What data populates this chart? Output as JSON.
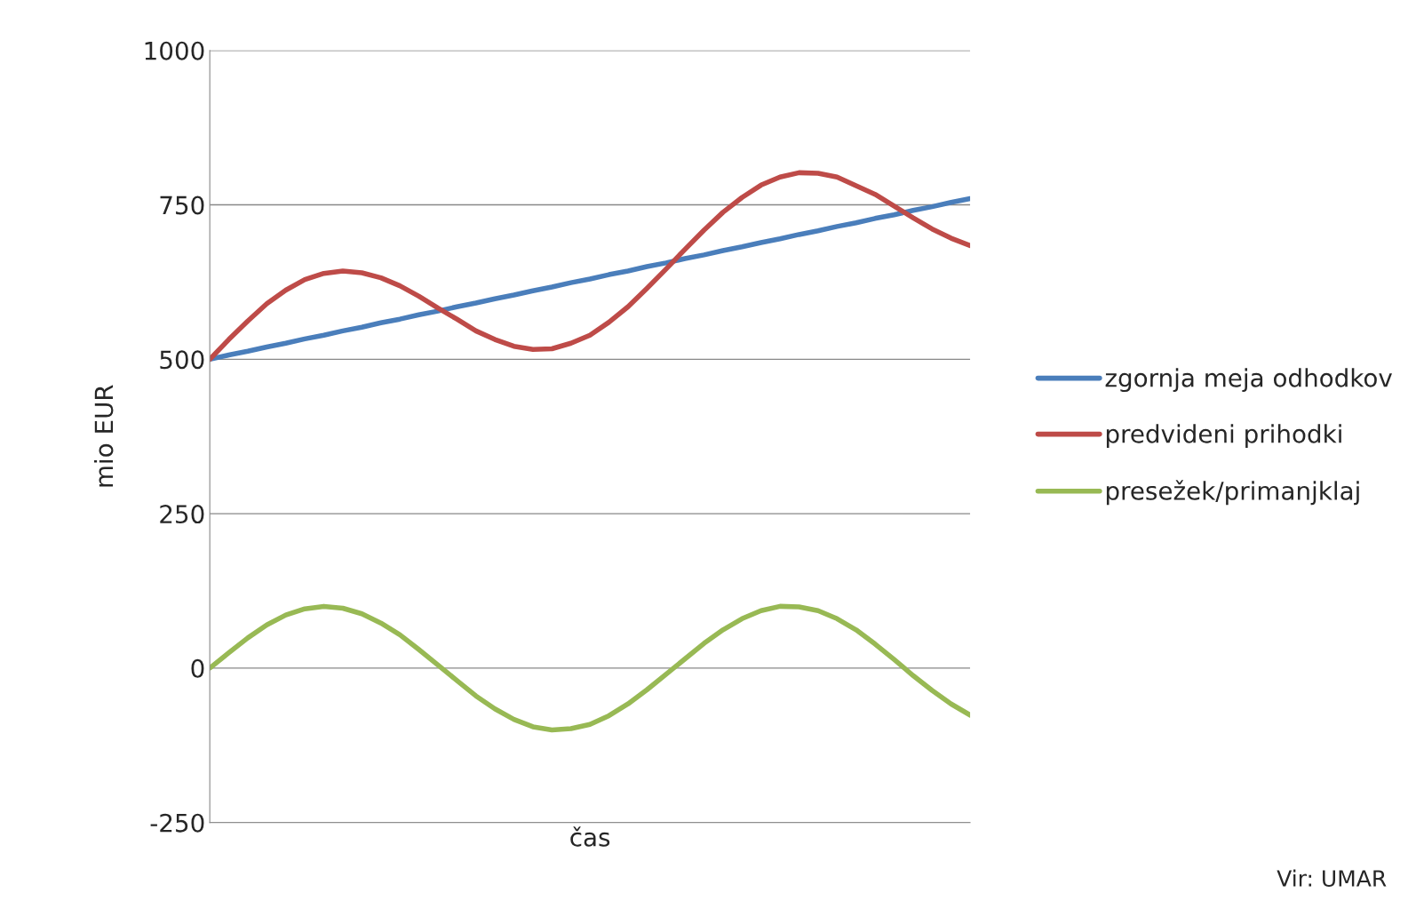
{
  "chart_data": {
    "type": "line",
    "xlabel": "čas",
    "ylabel": "mio EUR",
    "categories": [
      null,
      null,
      null,
      null,
      null,
      null,
      null,
      null,
      null,
      null,
      null,
      null,
      null,
      null,
      null,
      null,
      null,
      null,
      null,
      null,
      null,
      null,
      null,
      null,
      null,
      null,
      null,
      null,
      null,
      null,
      null,
      null,
      null,
      null,
      null,
      null,
      null,
      null,
      null,
      null,
      null
    ],
    "series": [
      {
        "name": "zgornja meja odhodkov",
        "color": "#4a7ebb",
        "values": [
          500,
          507,
          513,
          520,
          526,
          533,
          539,
          546,
          552,
          559,
          565,
          572,
          578,
          585,
          591,
          598,
          604,
          611,
          617,
          624,
          630,
          637,
          643,
          650,
          656,
          663,
          669,
          676,
          682,
          689,
          695,
          702,
          708,
          715,
          721,
          728,
          734,
          741,
          747,
          754,
          760
        ]
      },
      {
        "name": "predvideni prihodki",
        "color": "#be4b48",
        "values": [
          500,
          532,
          562,
          590,
          612,
          629,
          639,
          643,
          640,
          632,
          619,
          602,
          583,
          565,
          546,
          532,
          521,
          516,
          517,
          526,
          539,
          560,
          585,
          615,
          646,
          678,
          709,
          738,
          762,
          782,
          795,
          802,
          801,
          795,
          781,
          767,
          748,
          729,
          711,
          696,
          684
        ]
      },
      {
        "name": "presežek/primanjklaj",
        "color": "#98b954",
        "values": [
          0,
          25,
          49,
          70,
          86,
          96,
          100,
          97,
          88,
          73,
          54,
          30,
          5,
          -20,
          -45,
          -66,
          -83,
          -95,
          -100,
          -98,
          -91,
          -77,
          -58,
          -35,
          -10,
          15,
          40,
          62,
          80,
          93,
          100,
          99,
          93,
          80,
          62,
          39,
          14,
          -12,
          -36,
          -58,
          -76
        ]
      }
    ],
    "ylim": [
      -250,
      1000
    ],
    "yticks": [
      -250,
      0,
      250,
      500,
      750,
      1000
    ],
    "grid": "y",
    "legend": "right",
    "tick_labels": "y",
    "line_style": "solid",
    "marker": "none",
    "annotations": [
      "Vir: UMAR"
    ]
  }
}
